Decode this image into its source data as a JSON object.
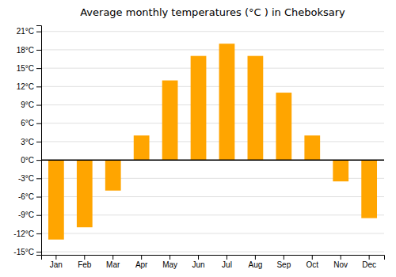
{
  "chart_data": {
    "type": "bar",
    "title": "Average monthly temperatures (°C ) in Cheboksary",
    "categories": [
      "Jan",
      "Feb",
      "Mar",
      "Apr",
      "May",
      "Jun",
      "Jul",
      "Aug",
      "Sep",
      "Oct",
      "Nov",
      "Dec"
    ],
    "values": [
      -13,
      -11,
      -5,
      4,
      13,
      17,
      19,
      17,
      11,
      4,
      -3.5,
      -9.5
    ],
    "color": "#FFA500",
    "ylim": [
      -15.5,
      22
    ],
    "yticks": [
      {
        "value": -15,
        "label": "-15°C"
      },
      {
        "value": -12,
        "label": "-12°C"
      },
      {
        "value": -9,
        "label": "-9°C"
      },
      {
        "value": -6,
        "label": "-6°C"
      },
      {
        "value": -3,
        "label": "-3°C"
      },
      {
        "value": 0,
        "label": "0°C"
      },
      {
        "value": 3,
        "label": "3°C"
      },
      {
        "value": 6,
        "label": "6°C"
      },
      {
        "value": 9,
        "label": "9°C"
      },
      {
        "value": 12,
        "label": "12°C"
      },
      {
        "value": 15,
        "label": "15°C"
      },
      {
        "value": 18,
        "label": "18°C"
      },
      {
        "value": 21,
        "label": "21°C"
      }
    ],
    "grid": true
  }
}
